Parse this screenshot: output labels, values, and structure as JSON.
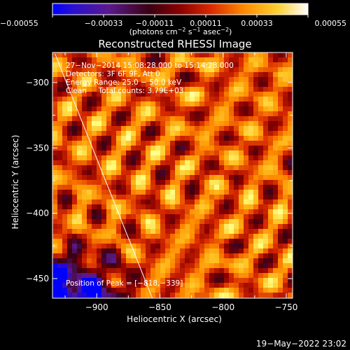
{
  "chart_data": {
    "type": "heatmap",
    "title": "Reconstructed RHESSI Image",
    "xlabel": "Heliocentric X (arcsec)",
    "ylabel": "Heliocentric Y (arcsec)",
    "xlim": [
      -935,
      -745
    ],
    "ylim": [
      -465,
      -277
    ],
    "x_ticks": [
      -900,
      -850,
      -800,
      -750
    ],
    "x_tick_labels": [
      "−900",
      "−850",
      "−800",
      "−750"
    ],
    "y_ticks": [
      -300,
      -350,
      -400,
      -450
    ],
    "y_tick_labels": [
      "−300",
      "−350",
      "−400",
      "−450"
    ],
    "colorbar": {
      "range": [
        -0.00055,
        0.00055
      ],
      "ticks": [
        -0.00055,
        -0.00033,
        -0.00011,
        0.00011,
        0.00033,
        0.00055
      ],
      "tick_labels": [
        "−0.00055",
        "−0.00033",
        "−0.00011",
        "0.00011",
        "0.00033",
        "0.00055"
      ],
      "units_prefix": "(photons cm",
      "units_exp1": "−2",
      "units_mid1": " s",
      "units_exp2": "−1",
      "units_mid2": " asec",
      "units_exp3": "−2",
      "units_suffix": ")"
    },
    "annotations": {
      "time_range": "27−Nov−2014 15:08:28.000 to 15:14:28.000",
      "detectors": "Detectors: 3F 6F 9F, Att 0",
      "energy_range": "Energy Range: 25.0 − 50.0 keV",
      "clean_info": "Clean     Total counts: 3.79E+03",
      "peak_position": "Position of Peak = [−818,−339]"
    },
    "limb_line": [
      [
        -933,
        -278
      ],
      [
        -856,
        -465
      ]
    ],
    "peak": [
      -818,
      -339
    ]
  },
  "footer": {
    "date_stamp": "19−May−2022 23:02"
  },
  "colors": {
    "background": "#000000",
    "text": "#ffffff",
    "colormap": [
      "#0000ff",
      "#5a1a8c",
      "#3a0012",
      "#8a0000",
      "#d82a00",
      "#ff8a00",
      "#ffc020",
      "#ffff80",
      "#ffffff"
    ]
  }
}
